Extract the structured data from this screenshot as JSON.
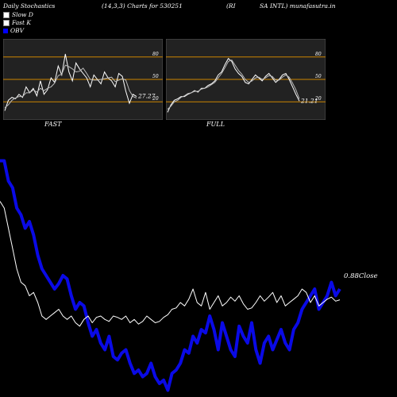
{
  "header": {
    "left": "Daily Stochastics",
    "params": "(14,3,3) Charts for 530251",
    "code_a": "(RI",
    "code_b": "SA INTL) munafasutra.in"
  },
  "legend": [
    {
      "label": "Slow  D",
      "color": "#ffffff"
    },
    {
      "label": "Fast  K",
      "color": "#ffffff"
    },
    {
      "label": "OBV",
      "color": "#0000ff"
    }
  ],
  "colors": {
    "background": "#000000",
    "panel_bg": "#222222",
    "level": "#cc8400",
    "obv": "#0a0ae6",
    "price": "#ffffff"
  },
  "chart_data": [
    {
      "type": "line",
      "title": "FAST",
      "ylim": [
        0,
        100
      ],
      "levels": [
        20,
        50,
        80
      ],
      "level_labels": [
        "20",
        "50",
        "80"
      ],
      "last_value_label": "27.27",
      "series": [
        {
          "name": "Fast K",
          "values": [
            8,
            22,
            26,
            24,
            30,
            26,
            40,
            32,
            38,
            28,
            48,
            30,
            36,
            52,
            46,
            68,
            56,
            84,
            60,
            48,
            72,
            64,
            58,
            52,
            40,
            56,
            50,
            44,
            60,
            52,
            48,
            40,
            58,
            54,
            34,
            18,
            30,
            27
          ]
        },
        {
          "name": "Slow  D",
          "values": [
            12,
            16,
            22,
            25,
            27,
            27,
            32,
            32,
            36,
            33,
            38,
            35,
            38,
            40,
            45,
            55,
            57,
            69,
            67,
            64,
            60,
            61,
            65,
            58,
            50,
            49,
            49,
            50,
            51,
            52,
            53,
            47,
            49,
            51,
            49,
            35,
            27,
            25
          ]
        }
      ]
    },
    {
      "type": "line",
      "title": "FULL",
      "ylim": [
        0,
        100
      ],
      "levels": [
        20,
        50,
        80
      ],
      "level_labels": [
        "20",
        "50",
        "80"
      ],
      "last_value_label": "21.21",
      "series": [
        {
          "name": "Full K",
          "values": [
            6,
            16,
            22,
            24,
            27,
            27,
            30,
            32,
            35,
            33,
            38,
            38,
            42,
            44,
            48,
            56,
            60,
            70,
            78,
            74,
            64,
            58,
            54,
            46,
            44,
            50,
            56,
            52,
            48,
            54,
            58,
            52,
            46,
            50,
            56,
            58,
            50,
            40,
            30,
            21
          ]
        },
        {
          "name": "Full D",
          "values": [
            10,
            14,
            20,
            22,
            26,
            28,
            31,
            32,
            34,
            34,
            37,
            38,
            40,
            43,
            46,
            52,
            58,
            66,
            74,
            76,
            69,
            62,
            57,
            50,
            46,
            48,
            52,
            53,
            50,
            52,
            55,
            54,
            49,
            49,
            53,
            56,
            53,
            45,
            36,
            24
          ]
        }
      ]
    },
    {
      "type": "line",
      "title": "",
      "last_value_label": "0.88",
      "close_label": "Close",
      "series": [
        {
          "name": "OBV",
          "values": [
            500,
            500,
            470,
            460,
            430,
            420,
            400,
            410,
            390,
            360,
            340,
            330,
            320,
            310,
            318,
            330,
            325,
            300,
            280,
            290,
            285,
            260,
            240,
            250,
            230,
            220,
            240,
            210,
            205,
            215,
            220,
            200,
            185,
            190,
            180,
            185,
            200,
            180,
            170,
            175,
            160,
            185,
            190,
            200,
            220,
            215,
            240,
            230,
            250,
            245,
            270,
            250,
            220,
            260,
            240,
            220,
            210,
            255,
            240,
            230,
            260,
            220,
            200,
            230,
            240,
            220,
            235,
            250,
            230,
            220,
            250,
            260,
            280,
            290,
            300,
            310,
            280,
            290,
            300,
            320,
            300,
            310
          ]
        },
        {
          "name": "Close",
          "values": [
            440,
            430,
            400,
            370,
            340,
            320,
            315,
            300,
            305,
            290,
            270,
            265,
            270,
            275,
            280,
            270,
            265,
            270,
            260,
            255,
            265,
            270,
            260,
            268,
            270,
            265,
            262,
            270,
            268,
            265,
            270,
            260,
            265,
            258,
            262,
            270,
            265,
            260,
            262,
            268,
            272,
            280,
            282,
            290,
            285,
            295,
            310,
            290,
            285,
            305,
            280,
            290,
            300,
            285,
            290,
            298,
            292,
            300,
            288,
            280,
            282,
            290,
            300,
            292,
            298,
            305,
            290,
            300,
            285,
            290,
            295,
            300,
            310,
            305,
            290,
            300,
            285,
            290,
            295,
            298,
            292,
            294
          ]
        }
      ]
    }
  ]
}
